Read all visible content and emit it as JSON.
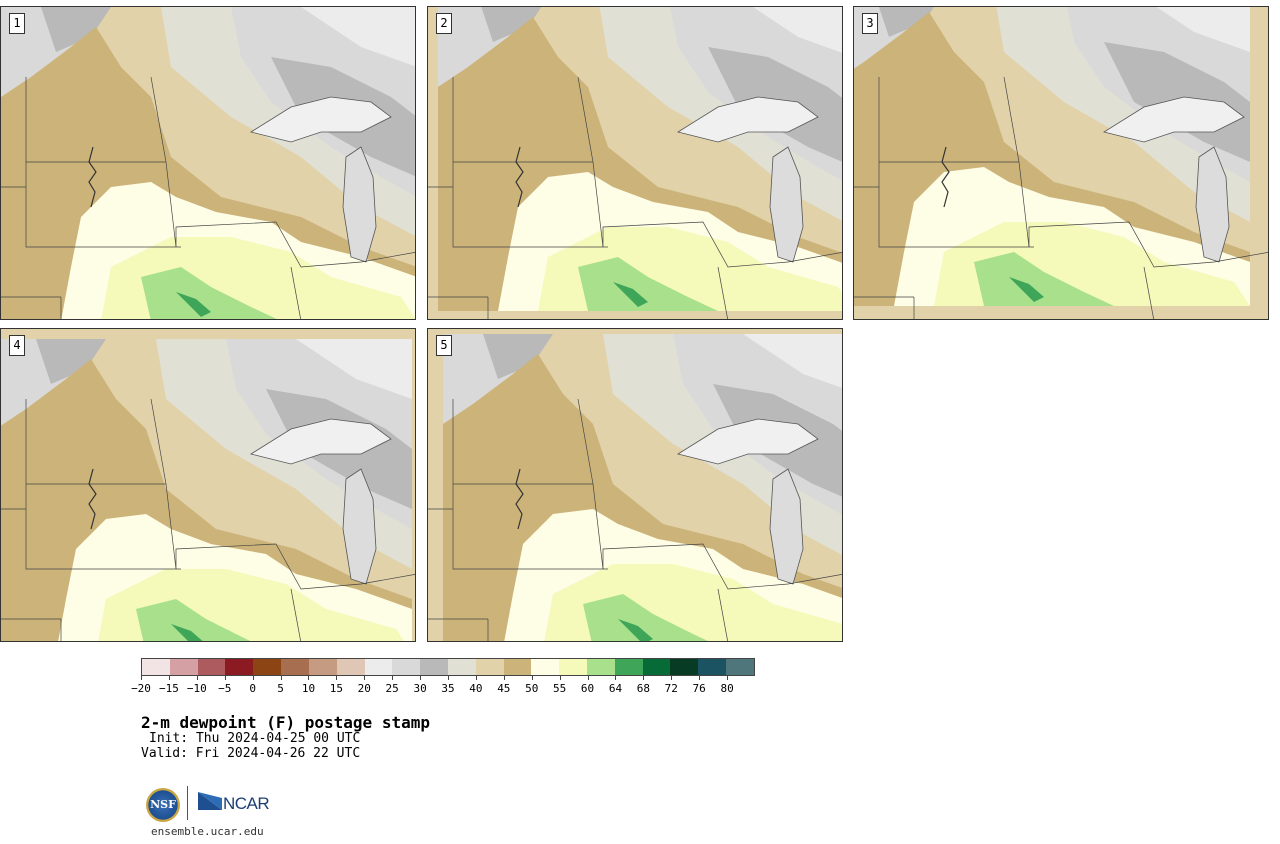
{
  "panels": [
    {
      "label": "1",
      "variant": 0
    },
    {
      "label": "2",
      "variant": 1
    },
    {
      "label": "3",
      "variant": 2
    },
    {
      "label": "4",
      "variant": 3
    },
    {
      "label": "5",
      "variant": 4
    }
  ],
  "colorbar": {
    "colors": [
      "#f2e4e4",
      "#d4a0a3",
      "#ae5b60",
      "#8c1a22",
      "#8c4414",
      "#a86e50",
      "#c59c82",
      "#e0c6b5",
      "#ececec",
      "#d9d9d9",
      "#b9b9b9",
      "#e0e0d5",
      "#e2d2aa",
      "#ccb37a",
      "#fefde6",
      "#f5f9ba",
      "#a9e08c",
      "#3ea559",
      "#066b37",
      "#073b23",
      "#1b5362",
      "#4e767b"
    ],
    "tick_labels": [
      "−20",
      "−15",
      "−10",
      "−5",
      "0",
      "5",
      "10",
      "15",
      "20",
      "25",
      "30",
      "35",
      "40",
      "45",
      "50",
      "55",
      "60",
      "64",
      "68",
      "72",
      "76",
      "80"
    ]
  },
  "title": "2-m dewpoint (F) postage stamp",
  "init": "Init: Thu 2024-04-25 00 UTC",
  "valid": "Valid: Fri 2024-04-26 22 UTC",
  "logo": {
    "nsf_text": "NSF",
    "ncar_text": "NCAR"
  },
  "site": "ensemble.ucar.edu"
}
